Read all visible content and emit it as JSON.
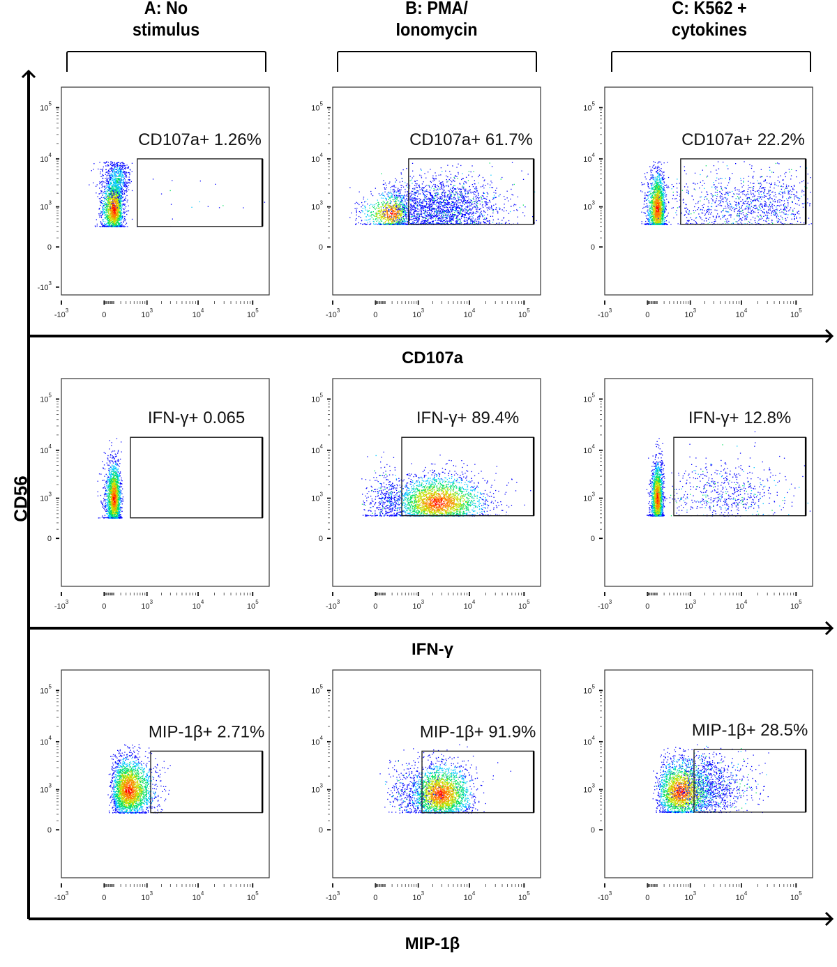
{
  "columns": [
    {
      "line1": "A: No",
      "line2": "stimulus"
    },
    {
      "line1": "B: PMA/",
      "line2": "Ionomycin"
    },
    {
      "line1": "C: K562 +",
      "line2": "cytokines"
    }
  ],
  "y_axis_label": "CD56",
  "row_axis_labels": [
    "CD107a",
    "IFN-γ",
    "MIP-1β"
  ],
  "colormap": [
    "#0000ff",
    "#00c8ff",
    "#00e060",
    "#c8e000",
    "#ff8000",
    "#ff0000"
  ],
  "chart_data": {
    "type": "scatter",
    "title": "CD56 vs CD107a / IFN-γ / MIP-1β flow cytometry panels",
    "ylabel": "CD56",
    "x_tick_labels": [
      "-10^3",
      "0",
      "10^3",
      "10^4",
      "10^5"
    ],
    "y_tick_labels_row1_colA": [
      "10^5",
      "10^4",
      "10^3",
      "0",
      "-10^3"
    ],
    "y_tick_labels_other": [
      "10^5",
      "10^4",
      "10^3",
      "0"
    ],
    "panels": [
      {
        "row": 0,
        "col": 0,
        "xlabel": "CD107a",
        "gate_label": "CD107a+ 1.26%",
        "gate_percent": 1.26,
        "gate": {
          "x": [
            600,
            150000
          ],
          "y": [
            300,
            10000
          ]
        },
        "populations": [
          {
            "center": [
              100,
              900
            ],
            "spread": [
              0.18,
              0.35
            ],
            "n": 1800,
            "density": "high"
          },
          {
            "center": [
              150,
              4000
            ],
            "spread": [
              0.18,
              0.25
            ],
            "n": 500,
            "density": "mid"
          },
          {
            "center": [
              8000,
              1200
            ],
            "spread": [
              1.0,
              0.4
            ],
            "n": 25,
            "density": "low"
          }
        ]
      },
      {
        "row": 0,
        "col": 1,
        "xlabel": "CD107a",
        "gate_label": "CD107a+ 61.7%",
        "gate_percent": 61.7,
        "gate": {
          "x": [
            600,
            150000
          ],
          "y": [
            350,
            10000
          ]
        },
        "populations": [
          {
            "center": [
              200,
              700
            ],
            "spread": [
              0.25,
              0.25
            ],
            "n": 900,
            "density": "high"
          },
          {
            "center": [
              3000,
              900
            ],
            "spread": [
              0.55,
              0.35
            ],
            "n": 2200,
            "density": "low"
          }
        ]
      },
      {
        "row": 0,
        "col": 2,
        "xlabel": "CD107a",
        "gate_label": "CD107a+ 22.2%",
        "gate_percent": 22.2,
        "gate": {
          "x": [
            600,
            150000
          ],
          "y": [
            350,
            10000
          ]
        },
        "populations": [
          {
            "center": [
              100,
              900
            ],
            "spread": [
              0.15,
              0.4
            ],
            "n": 1800,
            "density": "high"
          },
          {
            "center": [
              25000,
              1200
            ],
            "spread": [
              0.5,
              0.35
            ],
            "n": 700,
            "density": "low"
          },
          {
            "center": [
              3000,
              1000
            ],
            "spread": [
              0.6,
              0.4
            ],
            "n": 400,
            "density": "low"
          }
        ]
      },
      {
        "row": 1,
        "col": 0,
        "xlabel": "IFN-γ",
        "gate_label": "IFN-γ+ 0.065",
        "gate_percent": 0.065,
        "gate": {
          "x": [
            400,
            150000
          ],
          "y": [
            300,
            18000
          ]
        },
        "populations": [
          {
            "center": [
              100,
              1000
            ],
            "spread": [
              0.13,
              0.38
            ],
            "n": 2000,
            "density": "high"
          }
        ]
      },
      {
        "row": 1,
        "col": 1,
        "xlabel": "IFN-γ",
        "gate_label": "IFN-γ+ 89.4%",
        "gate_percent": 89.4,
        "gate": {
          "x": [
            400,
            150000
          ],
          "y": [
            350,
            18000
          ]
        },
        "populations": [
          {
            "center": [
              2500,
              800
            ],
            "spread": [
              0.45,
              0.3
            ],
            "n": 2600,
            "density": "high"
          },
          {
            "center": [
              100,
              900
            ],
            "spread": [
              0.3,
              0.35
            ],
            "n": 400,
            "density": "low"
          }
        ]
      },
      {
        "row": 1,
        "col": 2,
        "xlabel": "IFN-γ",
        "gate_label": "IFN-γ+ 12.8%",
        "gate_percent": 12.8,
        "gate": {
          "x": [
            400,
            150000
          ],
          "y": [
            350,
            18000
          ]
        },
        "populations": [
          {
            "center": [
              100,
              1000
            ],
            "spread": [
              0.1,
              0.38
            ],
            "n": 1800,
            "density": "high"
          },
          {
            "center": [
              5000,
              1300
            ],
            "spread": [
              0.55,
              0.35
            ],
            "n": 600,
            "density": "low"
          }
        ]
      },
      {
        "row": 2,
        "col": 0,
        "xlabel": "MIP-1β",
        "gate_label": "MIP-1β+ 2.71%",
        "gate_percent": 2.71,
        "gate": {
          "x": [
            1200,
            150000
          ],
          "y": [
            230,
            6500
          ]
        },
        "populations": [
          {
            "center": [
              350,
              1000
            ],
            "spread": [
              0.3,
              0.35
            ],
            "n": 2600,
            "density": "high"
          }
        ]
      },
      {
        "row": 2,
        "col": 1,
        "xlabel": "MIP-1β",
        "gate_label": "MIP-1β+ 91.9%",
        "gate_percent": 91.9,
        "gate": {
          "x": [
            1200,
            150000
          ],
          "y": [
            230,
            6500
          ]
        },
        "populations": [
          {
            "center": [
              2800,
              800
            ],
            "spread": [
              0.3,
              0.33
            ],
            "n": 2400,
            "density": "high"
          },
          {
            "center": [
              600,
              900
            ],
            "spread": [
              0.35,
              0.35
            ],
            "n": 300,
            "density": "low"
          }
        ]
      },
      {
        "row": 2,
        "col": 2,
        "xlabel": "MIP-1β",
        "gate_label": "MIP-1β+ 28.5%",
        "gate_percent": 28.5,
        "gate": {
          "x": [
            1200,
            150000
          ],
          "y": [
            240,
            7000
          ]
        },
        "populations": [
          {
            "center": [
              600,
              900
            ],
            "spread": [
              0.35,
              0.35
            ],
            "n": 2200,
            "density": "high"
          },
          {
            "center": [
              2500,
              1200
            ],
            "spread": [
              0.4,
              0.35
            ],
            "n": 900,
            "density": "low"
          }
        ]
      }
    ]
  }
}
